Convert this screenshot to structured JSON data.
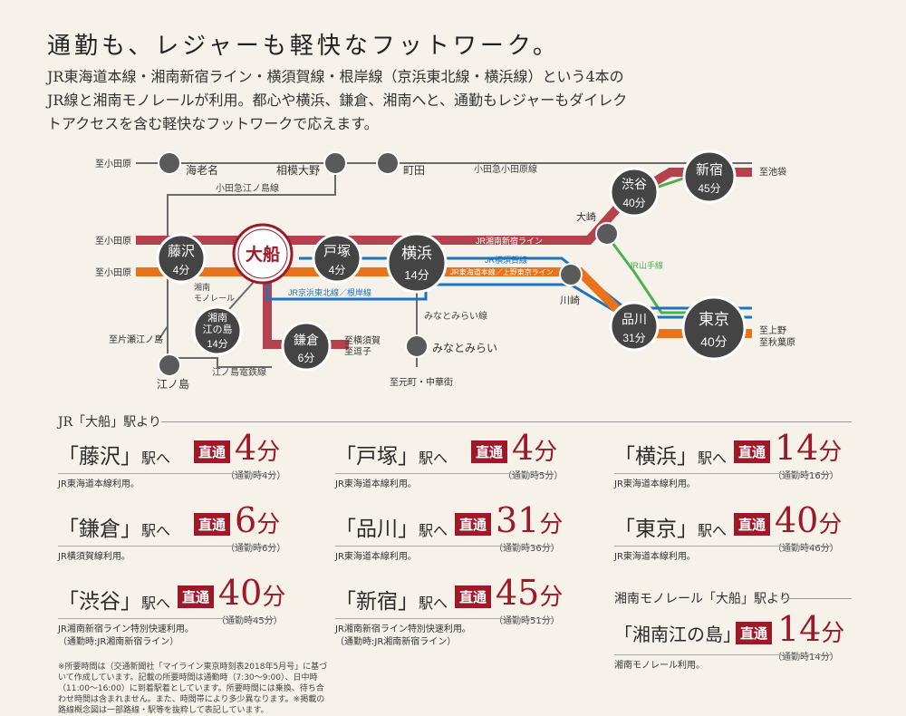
{
  "title": "通勤も、レジャーも軽快なフットワーク。",
  "lead": [
    "JR東海道本線・湘南新宿ライン・横須賀線・根岸線（京浜東北線・横浜線）という4本の",
    "JR線と湘南モノレールが利用。都心や横浜、鎌倉、湘南へと、通勤もレジャーもダイレク",
    "トアクセスを含む軽快なフットワークで応えます。"
  ],
  "map": {
    "origin": "大船",
    "timed_stations": [
      {
        "name": "藤沢",
        "time": "4分"
      },
      {
        "name": "戸塚",
        "time": "4分"
      },
      {
        "name": "横浜",
        "time": "14分"
      },
      {
        "name": "鎌倉",
        "time": "6分"
      },
      {
        "name": "湘南\n江の島",
        "time": "14分"
      },
      {
        "name": "渋谷",
        "time": "40分"
      },
      {
        "name": "新宿",
        "time": "45分"
      },
      {
        "name": "品川",
        "time": "31分"
      },
      {
        "name": "東京",
        "time": "40分"
      }
    ],
    "stations": [
      "海老名",
      "相模大野",
      "町田",
      "大崎",
      "川崎",
      "みなとみらい",
      "江ノ島"
    ],
    "lines": [
      "小田急小田原線",
      "小田急江ノ島線",
      "JR湘南新宿ライン",
      "JR横須賀線",
      "JR東海道本線／上野東京ライン",
      "JR京浜東北線／根岸線",
      "JR山手線",
      "みなとみらい線",
      "江ノ島電鉄線",
      "湘南\nモノレール"
    ],
    "terminals": [
      "至小田原",
      "至小田原",
      "至小田原",
      "至池袋",
      "至上野",
      "至秋葉原",
      "至片瀬江ノ島",
      "至横須賀",
      "至逗子",
      "至元町・中華街"
    ],
    "colors": {
      "red_line": "#b5404e",
      "blue_line": "#1e73be",
      "orange_line": "#e8731a",
      "green_line": "#4caf50",
      "grey_line": "#6a6a6a",
      "station_dark": "#4a4a4a",
      "accent": "#9c1a28"
    }
  },
  "jr_section_title": "JR「大船」駅より",
  "mono_section_title": "湘南モノレール「大船」駅より",
  "express_label": "直通",
  "routes": [
    {
      "station": "「藤沢」",
      "suffix": "駅へ",
      "num": "4",
      "unit": "分",
      "sub": "（通勤時4分）",
      "note": "JR東海道本線利用。"
    },
    {
      "station": "「戸塚」",
      "suffix": "駅へ",
      "num": "4",
      "unit": "分",
      "sub": "（通勤時5分）",
      "note": "JR東海道本線利用。"
    },
    {
      "station": "「横浜」",
      "suffix": "駅へ",
      "num": "14",
      "unit": "分",
      "sub": "（通勤時16分）",
      "note": "JR東海道本線利用。"
    },
    {
      "station": "「鎌倉」",
      "suffix": "駅へ",
      "num": "6",
      "unit": "分",
      "sub": "（通勤時6分）",
      "note": "JR横須賀線利用。"
    },
    {
      "station": "「品川」",
      "suffix": "駅へ",
      "num": "31",
      "unit": "分",
      "sub": "（通勤時36分）",
      "note": "JR東海道本線利用。"
    },
    {
      "station": "「東京」",
      "suffix": "駅へ",
      "num": "40",
      "unit": "分",
      "sub": "（通勤時46分）",
      "note": "JR東海道本線利用。"
    },
    {
      "station": "「渋谷」",
      "suffix": "駅へ",
      "num": "40",
      "unit": "分",
      "sub": "（通勤時45分）",
      "note": "JR湘南新宿ライン特別快速利用。\n（通勤時:JR湘南新宿ライン）"
    },
    {
      "station": "「新宿」",
      "suffix": "駅へ",
      "num": "45",
      "unit": "分",
      "sub": "（通勤時51分）",
      "note": "JR湘南新宿ライン特別快速利用。\n（通勤時:JR湘南新宿ライン）"
    },
    {
      "station": "「湘南江の島」",
      "suffix": "駅へ",
      "num": "14",
      "unit": "分",
      "sub": "（通勤時14分）",
      "note": "湘南モノレール利用。"
    }
  ],
  "footnote": "※所要時間は（交通新聞社「マイライン東京時刻表2018年5月号」に基づいて作成しています。記載の所要時間は通勤時（7:30〜9:00）、日中時（11:00〜16:00）に到着駅着としています。所要時間には乗換、待ち合わせ時間は含まれません。また、時間帯により多少異なります。※掲載の路線概念図は一部路線・駅等を抜粋して表記しています。"
}
